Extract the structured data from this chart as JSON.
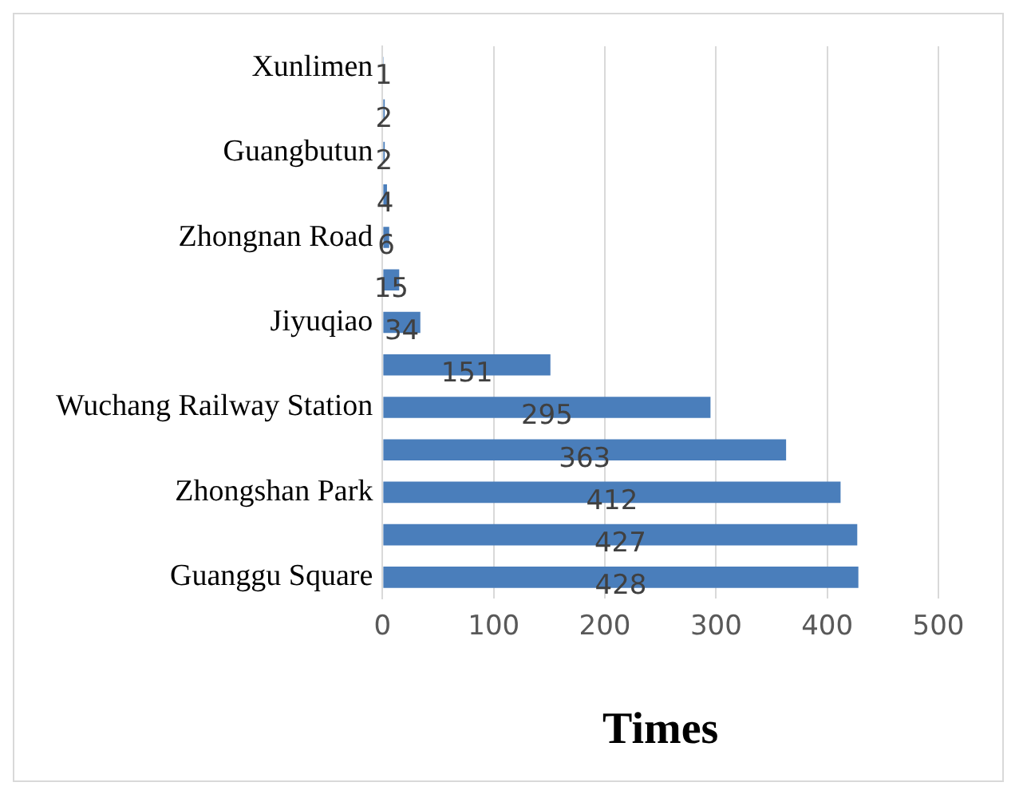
{
  "chart_data": {
    "type": "bar",
    "orientation": "horizontal",
    "xlabel": "Times",
    "categories": [
      "Xunlimen",
      null,
      "Guangbutun",
      null,
      "Zhongnan Road",
      null,
      "Jiyuqiao",
      null,
      "Wuchang Railway Station",
      null,
      "Zhongshan Park",
      null,
      "Guanggu Square"
    ],
    "values": [
      1,
      2,
      2,
      4,
      6,
      15,
      34,
      151,
      295,
      363,
      412,
      427,
      428
    ],
    "color": "#4a7ebb",
    "xlim": [
      0,
      500
    ],
    "xticks": [
      0,
      100,
      200,
      300,
      400,
      500
    ],
    "grid": "x",
    "legend": false,
    "data_labels": true
  }
}
